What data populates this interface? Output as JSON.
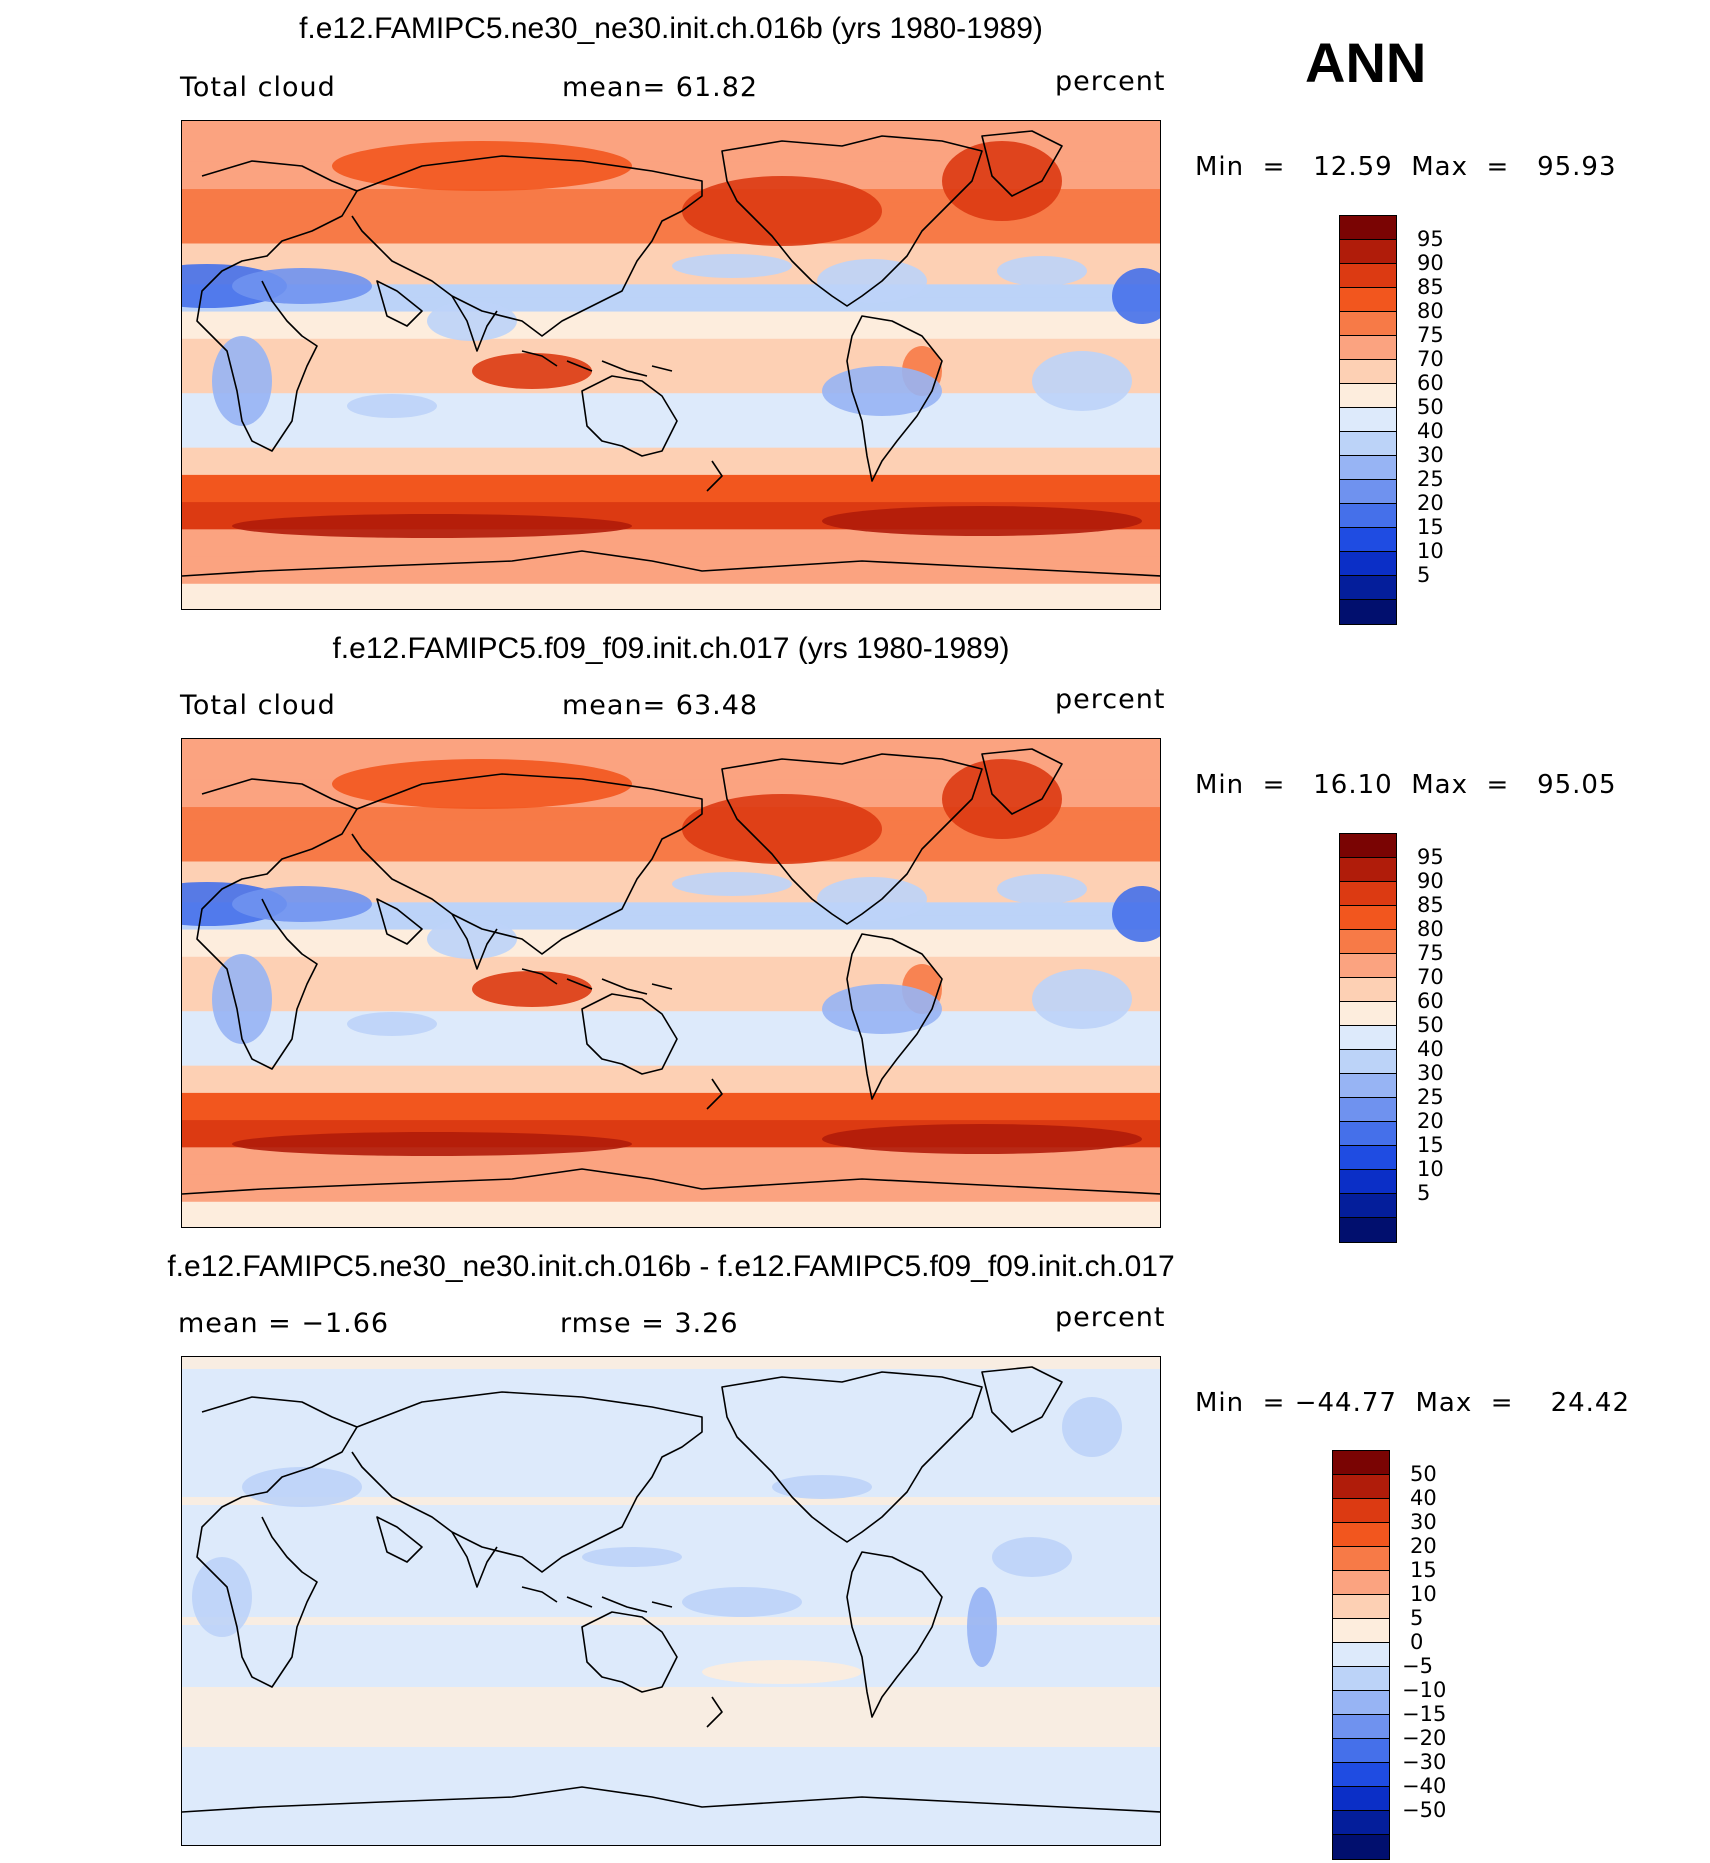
{
  "season": "ANN",
  "panels": [
    {
      "title": "f.e12.FAMIPC5.ne30_ne30.init.ch.016b (yrs 1980-1989)",
      "left_label": "Total cloud",
      "center_label": "mean=   61.82",
      "units": "percent",
      "minmax": "Min  =   12.59  Max  =   95.93",
      "type": "abs"
    },
    {
      "title": "f.e12.FAMIPC5.f09_f09.init.ch.017 (yrs 1980-1989)",
      "left_label": "Total cloud",
      "center_label": "mean=   63.48",
      "units": "percent",
      "minmax": "Min  =   16.10  Max  =   95.05",
      "type": "abs"
    },
    {
      "title": "f.e12.FAMIPC5.ne30_ne30.init.ch.016b - f.e12.FAMIPC5.f09_f09.init.ch.017",
      "left_label": "mean  =   −1.66",
      "center_label": "rmse  =     3.26",
      "units": "percent",
      "minmax": "Min  = −44.77  Max  =    24.42",
      "type": "diff"
    }
  ],
  "colorbar_abs": {
    "colors": [
      "#7a0403",
      "#b01c0a",
      "#dc3a12",
      "#f2561e",
      "#f77a47",
      "#fba380",
      "#fdd0b4",
      "#fdeddd",
      "#ddeafb",
      "#bcd3f8",
      "#97b4f4",
      "#6f92ef",
      "#4570ea",
      "#1f4ce2",
      "#0b2fc7",
      "#041e9b",
      "#010f6e"
    ],
    "labels": [
      "95",
      "90",
      "85",
      "80",
      "75",
      "70",
      "60",
      "50",
      "40",
      "30",
      "25",
      "20",
      "15",
      "10",
      "5"
    ]
  },
  "colorbar_diff": {
    "colors": [
      "#7a0403",
      "#b01c0a",
      "#dc3a12",
      "#f2561e",
      "#f77a47",
      "#fba380",
      "#fdd0b4",
      "#fdeddd",
      "#ddeafb",
      "#bcd3f8",
      "#97b4f4",
      "#6f92ef",
      "#4570ea",
      "#1f4ce2",
      "#0b2fc7",
      "#041e9b",
      "#010f6e"
    ],
    "labels": [
      "50",
      "40",
      "30",
      "20",
      "15",
      "10",
      "5",
      "0",
      "−5",
      "−10",
      "−15",
      "−20",
      "−30",
      "−40",
      "−50"
    ]
  },
  "chart_data": [
    {
      "type": "heatmap",
      "title": "f.e12.FAMIPC5.ne30_ne30.init.ch.016b (yrs 1980-1989)",
      "variable": "Total cloud",
      "units": "percent",
      "mean": 61.82,
      "min": 12.59,
      "max": 95.93,
      "levels": [
        5,
        10,
        15,
        20,
        25,
        30,
        40,
        50,
        60,
        70,
        75,
        80,
        85,
        90,
        95
      ]
    },
    {
      "type": "heatmap",
      "title": "f.e12.FAMIPC5.f09_f09.init.ch.017 (yrs 1980-1989)",
      "variable": "Total cloud",
      "units": "percent",
      "mean": 63.48,
      "min": 16.1,
      "max": 95.05,
      "levels": [
        5,
        10,
        15,
        20,
        25,
        30,
        40,
        50,
        60,
        70,
        75,
        80,
        85,
        90,
        95
      ]
    },
    {
      "type": "heatmap",
      "title": "f.e12.FAMIPC5.ne30_ne30.init.ch.016b - f.e12.FAMIPC5.f09_f09.init.ch.017",
      "units": "percent",
      "mean": -1.66,
      "rmse": 3.26,
      "min": -44.77,
      "max": 24.42,
      "levels": [
        -50,
        -40,
        -30,
        -20,
        -15,
        -10,
        -5,
        0,
        5,
        10,
        15,
        20,
        30,
        40,
        50
      ]
    }
  ]
}
